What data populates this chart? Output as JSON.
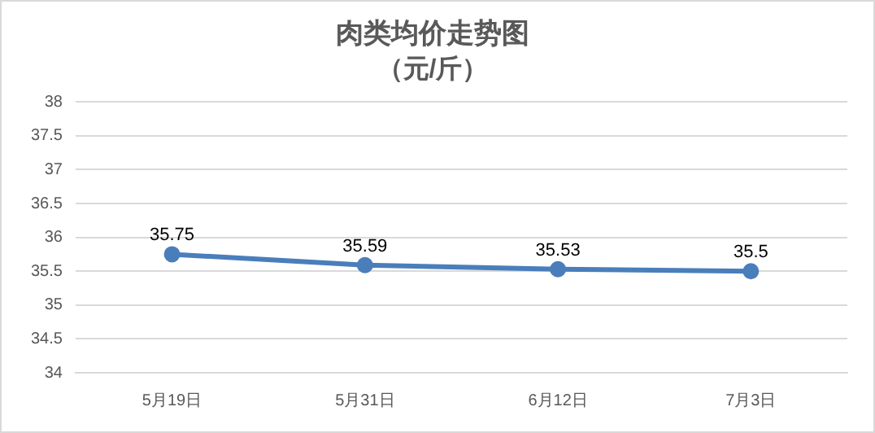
{
  "chart_data": {
    "type": "line",
    "title": "肉类均价走势图",
    "subtitle": "（元/斤）",
    "categories": [
      "5月19日",
      "5月31日",
      "6月12日",
      "7月3日"
    ],
    "series": [
      {
        "color": "#4a7ebb",
        "values": [
          35.75,
          35.59,
          35.53,
          35.5
        ]
      }
    ],
    "ylim": [
      34,
      38
    ],
    "yticks": [
      34,
      34.5,
      35,
      35.5,
      36,
      36.5,
      37,
      37.5,
      38
    ],
    "grid": "y",
    "legend": false,
    "marker": "circle",
    "line_style": "solid",
    "data_labels": true
  }
}
